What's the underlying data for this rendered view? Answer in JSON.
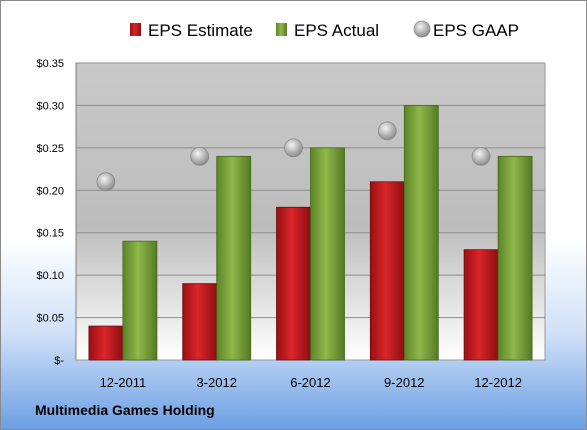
{
  "company": "Multimedia Games Holding",
  "chart_data": {
    "type": "bar",
    "categories": [
      "12-2011",
      "3-2012",
      "6-2012",
      "9-2012",
      "12-2012"
    ],
    "series": [
      {
        "name": "EPS Estimate",
        "kind": "bar",
        "color": "#c0181c",
        "values": [
          0.04,
          0.09,
          0.18,
          0.21,
          0.13
        ]
      },
      {
        "name": "EPS Actual",
        "kind": "bar",
        "color": "#7aa33a",
        "values": [
          0.14,
          0.24,
          0.25,
          0.3,
          0.24
        ]
      },
      {
        "name": "EPS GAAP",
        "kind": "marker",
        "color": "#b8b8b8",
        "values": [
          0.21,
          0.24,
          0.25,
          0.27,
          0.24
        ]
      }
    ],
    "yticks": [
      {
        "value": 0,
        "label": "$-"
      },
      {
        "value": 0.05,
        "label": "$0.05"
      },
      {
        "value": 0.1,
        "label": "$0.10"
      },
      {
        "value": 0.15,
        "label": "$0.15"
      },
      {
        "value": 0.2,
        "label": "$0.20"
      },
      {
        "value": 0.25,
        "label": "$0.25"
      },
      {
        "value": 0.3,
        "label": "$0.30"
      },
      {
        "value": 0.35,
        "label": "$0.35"
      }
    ],
    "ylim": [
      0,
      0.35
    ],
    "grid": true,
    "legend": "top"
  }
}
